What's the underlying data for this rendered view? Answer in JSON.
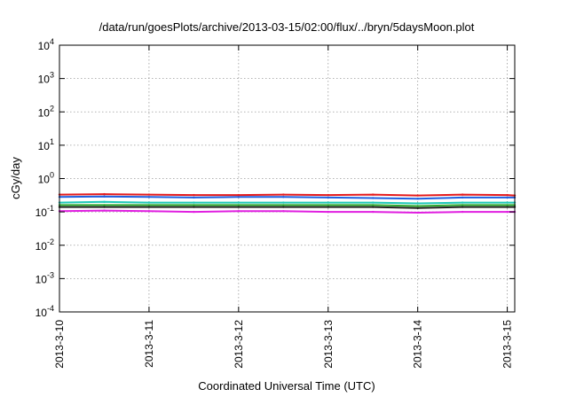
{
  "chart_data": {
    "type": "line",
    "title": "/data/run/goesPlots/archive/2013-03-15/02:00/flux/../bryn/5daysMoon.plot",
    "xlabel": "Coordinated Universal Time (UTC)",
    "ylabel": "cGy/day",
    "y_scale": "log",
    "ylim": [
      0.0001,
      10000
    ],
    "xlim": [
      "2013-03-10 00:00",
      "2013-03-15 02:00"
    ],
    "grid": true,
    "legend": "none",
    "x_ticks": [
      {
        "value": "2013-03-10 00:00",
        "label": "2013-3-10"
      },
      {
        "value": "2013-03-11 00:00",
        "label": "2013-3-11"
      },
      {
        "value": "2013-03-12 00:00",
        "label": "2013-3-12"
      },
      {
        "value": "2013-03-13 00:00",
        "label": "2013-3-13"
      },
      {
        "value": "2013-03-14 00:00",
        "label": "2013-3-14"
      },
      {
        "value": "2013-03-15 00:00",
        "label": "2013-3-15"
      }
    ],
    "y_ticks": [
      {
        "value": 10000,
        "base": "10",
        "exp": "4"
      },
      {
        "value": 1000,
        "base": "10",
        "exp": "3"
      },
      {
        "value": 100,
        "base": "10",
        "exp": "2"
      },
      {
        "value": 10,
        "base": "10",
        "exp": "1"
      },
      {
        "value": 1,
        "base": "10",
        "exp": "0"
      },
      {
        "value": 0.1,
        "base": "10",
        "exp": "-1"
      },
      {
        "value": 0.01,
        "base": "10",
        "exp": "-2"
      },
      {
        "value": 0.001,
        "base": "10",
        "exp": "-3"
      },
      {
        "value": 0.0001,
        "base": "10",
        "exp": "-4"
      }
    ],
    "x": [
      "2013-03-10 00:00",
      "2013-03-10 12:00",
      "2013-03-11 00:00",
      "2013-03-11 12:00",
      "2013-03-12 00:00",
      "2013-03-12 12:00",
      "2013-03-13 00:00",
      "2013-03-13 12:00",
      "2013-03-14 00:00",
      "2013-03-14 12:00",
      "2013-03-15 00:00",
      "2013-03-15 02:00"
    ],
    "series": [
      {
        "color": "#e41a1c",
        "values": [
          0.33,
          0.34,
          0.33,
          0.32,
          0.32,
          0.33,
          0.32,
          0.33,
          0.31,
          0.33,
          0.32,
          0.31
        ]
      },
      {
        "color": "#1f5fe0",
        "values": [
          0.28,
          0.29,
          0.28,
          0.27,
          0.28,
          0.28,
          0.27,
          0.26,
          0.25,
          0.27,
          0.27,
          0.27
        ]
      },
      {
        "color": "#1ec8b8",
        "values": [
          0.19,
          0.2,
          0.19,
          0.19,
          0.19,
          0.19,
          0.19,
          0.19,
          0.18,
          0.19,
          0.19,
          0.19
        ]
      },
      {
        "color": "#2faa2f",
        "values": [
          0.16,
          0.16,
          0.16,
          0.16,
          0.16,
          0.16,
          0.16,
          0.16,
          0.15,
          0.16,
          0.16,
          0.16
        ]
      },
      {
        "color": "#222222",
        "values": [
          0.14,
          0.14,
          0.14,
          0.14,
          0.14,
          0.14,
          0.14,
          0.14,
          0.13,
          0.14,
          0.14,
          0.14
        ]
      },
      {
        "color": "#e01ee0",
        "values": [
          0.105,
          0.11,
          0.105,
          0.1,
          0.105,
          0.105,
          0.1,
          0.1,
          0.095,
          0.1,
          0.1,
          0.1
        ]
      }
    ]
  }
}
